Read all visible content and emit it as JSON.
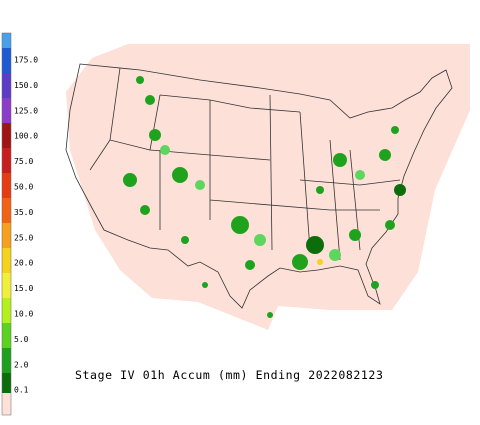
{
  "legend": {
    "labels": [
      "175.0",
      "150.0",
      "125.0",
      "100.0",
      "75.0",
      "50.0",
      "35.0",
      "25.0",
      "20.0",
      "15.0",
      "10.0",
      "5.0",
      "2.0",
      "0.1"
    ]
  },
  "caption": "Stage IV 01h Accum (mm) Ending 2022082123"
}
